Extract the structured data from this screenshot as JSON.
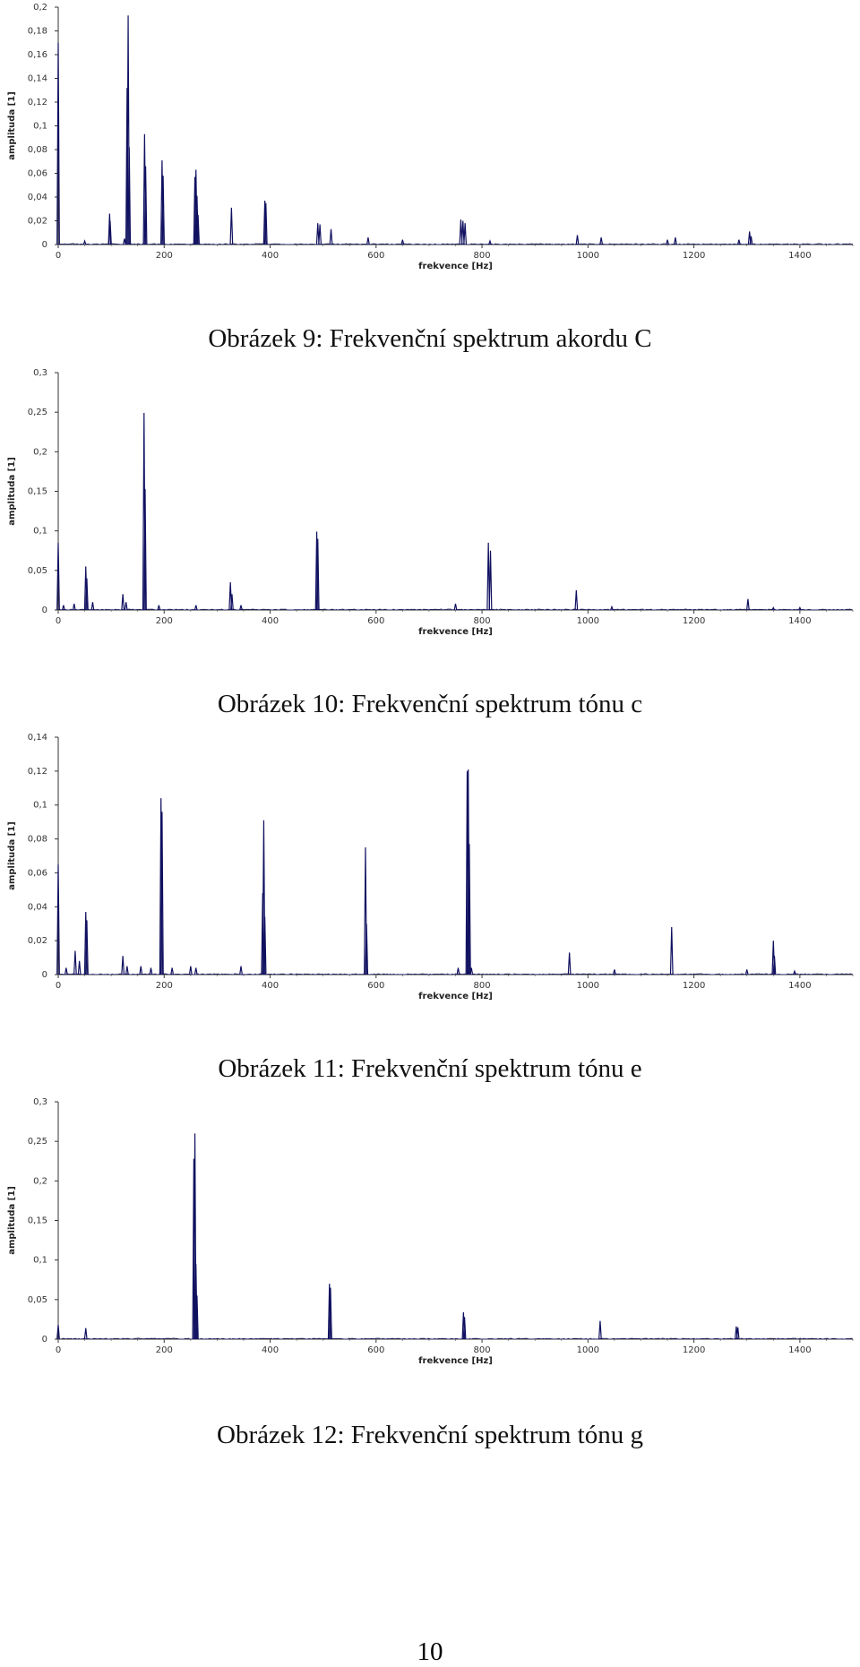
{
  "page_number": "10",
  "chart_data": [
    {
      "type": "line",
      "caption": "Obrázek 9: Frekvenční spektrum akordu C",
      "xlabel": "frekvence [Hz]",
      "ylabel": "amplituda [1]",
      "xlim": [
        0,
        1500
      ],
      "ylim": [
        0,
        0.2
      ],
      "xticks": [
        "0",
        "200",
        "400",
        "600",
        "800",
        "1000",
        "1200",
        "1400"
      ],
      "yticks": [
        "0",
        "0,02",
        "0,04",
        "0,06",
        "0,08",
        "0,1",
        "0,12",
        "0,14",
        "0,16",
        "0,18",
        "0,2"
      ],
      "yticks_values": [
        0,
        0.02,
        0.04,
        0.06,
        0.08,
        0.1,
        0.12,
        0.14,
        0.16,
        0.18,
        0.2
      ],
      "peaks": [
        [
          0,
          0.17
        ],
        [
          50,
          0.003
        ],
        [
          97,
          0.026
        ],
        [
          98,
          0.02
        ],
        [
          125,
          0.005
        ],
        [
          130,
          0.132
        ],
        [
          132,
          0.193
        ],
        [
          134,
          0.082
        ],
        [
          163,
          0.093
        ],
        [
          165,
          0.066
        ],
        [
          196,
          0.071
        ],
        [
          198,
          0.058
        ],
        [
          258,
          0.057
        ],
        [
          260,
          0.063
        ],
        [
          262,
          0.041
        ],
        [
          264,
          0.025
        ],
        [
          327,
          0.031
        ],
        [
          390,
          0.037
        ],
        [
          392,
          0.035
        ],
        [
          490,
          0.018
        ],
        [
          494,
          0.017
        ],
        [
          515,
          0.013
        ],
        [
          585,
          0.006
        ],
        [
          650,
          0.004
        ],
        [
          760,
          0.021
        ],
        [
          764,
          0.02
        ],
        [
          768,
          0.018
        ],
        [
          815,
          0.003
        ],
        [
          980,
          0.008
        ],
        [
          1025,
          0.006
        ],
        [
          1150,
          0.004
        ],
        [
          1165,
          0.006
        ],
        [
          1285,
          0.004
        ],
        [
          1305,
          0.011
        ],
        [
          1308,
          0.007
        ]
      ]
    },
    {
      "type": "line",
      "caption": "Obrázek 10: Frekvenční spektrum tónu c",
      "xlabel": "frekvence [Hz]",
      "ylabel": "amplituda [1]",
      "xlim": [
        0,
        1500
      ],
      "ylim": [
        0,
        0.3
      ],
      "xticks": [
        "0",
        "200",
        "400",
        "600",
        "800",
        "1000",
        "1200",
        "1400"
      ],
      "yticks": [
        "0",
        "0,05",
        "0,1",
        "0,15",
        "0,2",
        "0,25",
        "0,3"
      ],
      "yticks_values": [
        0,
        0.05,
        0.1,
        0.15,
        0.2,
        0.25,
        0.3
      ],
      "peaks": [
        [
          0,
          0.085
        ],
        [
          10,
          0.006
        ],
        [
          30,
          0.008
        ],
        [
          52,
          0.055
        ],
        [
          54,
          0.04
        ],
        [
          65,
          0.01
        ],
        [
          122,
          0.02
        ],
        [
          128,
          0.01
        ],
        [
          162,
          0.249
        ],
        [
          164,
          0.153
        ],
        [
          190,
          0.006
        ],
        [
          260,
          0.006
        ],
        [
          325,
          0.035
        ],
        [
          328,
          0.02
        ],
        [
          345,
          0.006
        ],
        [
          488,
          0.099
        ],
        [
          490,
          0.09
        ],
        [
          750,
          0.008
        ],
        [
          812,
          0.085
        ],
        [
          816,
          0.075
        ],
        [
          978,
          0.025
        ],
        [
          1045,
          0.004
        ],
        [
          1302,
          0.014
        ],
        [
          1350,
          0.003
        ],
        [
          1400,
          0.003
        ]
      ]
    },
    {
      "type": "line",
      "caption": "Obrázek 11: Frekvenční spektrum tónu e",
      "xlabel": "frekvence [Hz]",
      "ylabel": "amplituda [1]",
      "xlim": [
        0,
        1500
      ],
      "ylim": [
        0,
        0.14
      ],
      "xticks": [
        "0",
        "200",
        "400",
        "600",
        "800",
        "1000",
        "1200",
        "1400"
      ],
      "yticks": [
        "0",
        "0,02",
        "0,04",
        "0,06",
        "0,08",
        "0,1",
        "0,12",
        "0,14"
      ],
      "yticks_values": [
        0,
        0.02,
        0.04,
        0.06,
        0.08,
        0.1,
        0.12,
        0.14
      ],
      "peaks": [
        [
          0,
          0.065
        ],
        [
          15,
          0.004
        ],
        [
          32,
          0.014
        ],
        [
          40,
          0.008
        ],
        [
          52,
          0.037
        ],
        [
          54,
          0.032
        ],
        [
          122,
          0.011
        ],
        [
          130,
          0.005
        ],
        [
          156,
          0.005
        ],
        [
          175,
          0.004
        ],
        [
          194,
          0.104
        ],
        [
          196,
          0.096
        ],
        [
          215,
          0.004
        ],
        [
          250,
          0.005
        ],
        [
          260,
          0.004
        ],
        [
          345,
          0.005
        ],
        [
          386,
          0.048
        ],
        [
          388,
          0.091
        ],
        [
          390,
          0.034
        ],
        [
          580,
          0.075
        ],
        [
          582,
          0.03
        ],
        [
          755,
          0.004
        ],
        [
          772,
          0.12
        ],
        [
          774,
          0.121
        ],
        [
          776,
          0.077
        ],
        [
          780,
          0.004
        ],
        [
          965,
          0.013
        ],
        [
          1050,
          0.003
        ],
        [
          1158,
          0.028
        ],
        [
          1300,
          0.003
        ],
        [
          1350,
          0.02
        ],
        [
          1352,
          0.011
        ],
        [
          1390,
          0.002
        ]
      ]
    },
    {
      "type": "line",
      "caption": "Obrázek 12: Frekvenční spektrum tónu g",
      "xlabel": "frekvence [Hz]",
      "ylabel": "amplituda [1]",
      "xlim": [
        0,
        1500
      ],
      "ylim": [
        0,
        0.3
      ],
      "xticks": [
        "0",
        "200",
        "400",
        "600",
        "800",
        "1000",
        "1200",
        "1400"
      ],
      "yticks": [
        "0",
        "0,05",
        "0,1",
        "0,15",
        "0,2",
        "0,25",
        "0,3"
      ],
      "yticks_values": [
        0,
        0.05,
        0.1,
        0.15,
        0.2,
        0.25,
        0.3
      ],
      "peaks": [
        [
          0,
          0.018
        ],
        [
          52,
          0.014
        ],
        [
          256,
          0.228
        ],
        [
          258,
          0.26
        ],
        [
          260,
          0.095
        ],
        [
          262,
          0.055
        ],
        [
          512,
          0.07
        ],
        [
          514,
          0.065
        ],
        [
          765,
          0.034
        ],
        [
          767,
          0.028
        ],
        [
          1023,
          0.023
        ],
        [
          1280,
          0.016
        ],
        [
          1283,
          0.015
        ]
      ]
    }
  ]
}
